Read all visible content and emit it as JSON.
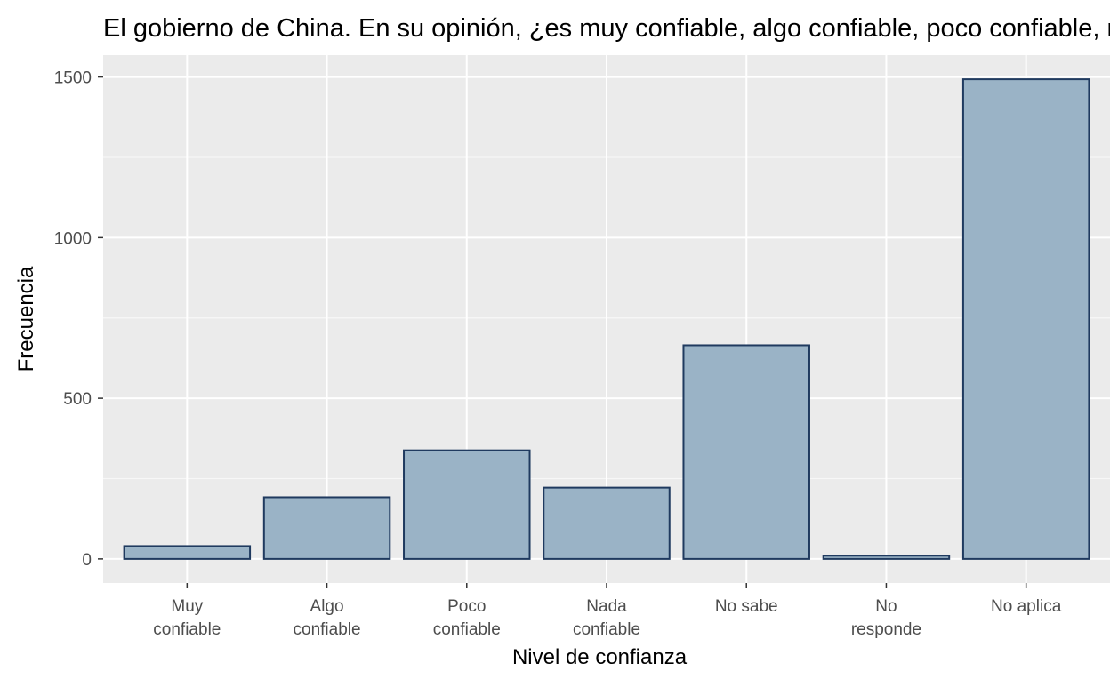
{
  "chart_data": {
    "type": "bar",
    "title": "El gobierno de China. En su opinión, ¿es muy confiable, algo confiable, poco confiable, nada confiable?",
    "xlabel": "Nivel de confianza",
    "ylabel": "Frecuencia",
    "categories": [
      [
        "Muy",
        "confiable"
      ],
      [
        "Algo",
        "confiable"
      ],
      [
        "Poco",
        "confiable"
      ],
      [
        "Nada",
        "confiable"
      ],
      [
        "No sabe"
      ],
      [
        "No",
        "responde"
      ],
      [
        "No aplica"
      ]
    ],
    "values": [
      40,
      192,
      338,
      222,
      665,
      10,
      1493
    ],
    "ylim": [
      -75,
      1568
    ],
    "yticks": [
      0,
      500,
      1000,
      1500
    ],
    "grid": true,
    "colors": {
      "bar_fill": "#9ab3c6",
      "bar_stroke": "#1f3a5f",
      "panel_bg": "#ebebeb",
      "grid_major": "#ffffff",
      "grid_minor": "#f7f7f7",
      "tick_text": "#4d4d4d"
    }
  }
}
